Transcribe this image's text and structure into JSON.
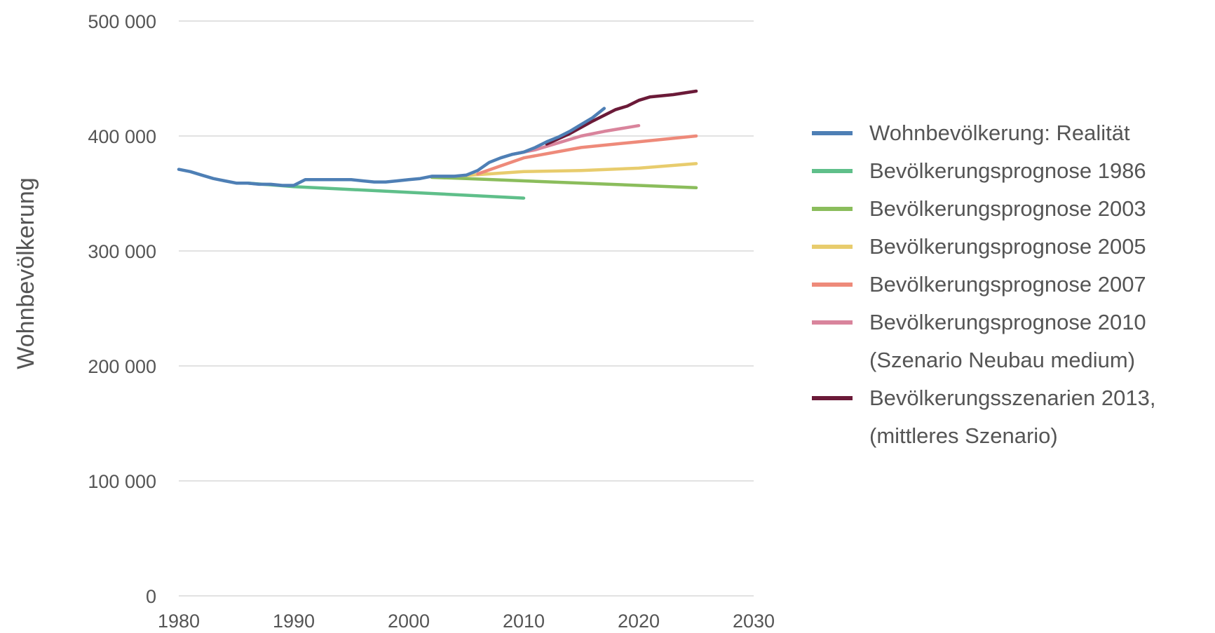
{
  "chart_data": {
    "type": "line",
    "title": "",
    "xlabel": "",
    "ylabel": "Wohnbevölkerung",
    "xlim": [
      1980,
      2030
    ],
    "ylim": [
      0,
      500000
    ],
    "x_ticks": [
      1980,
      1990,
      2000,
      2010,
      2020,
      2030
    ],
    "x_tick_labels": [
      "1980",
      "1990",
      "2000",
      "2010",
      "2020",
      "2030"
    ],
    "y_ticks": [
      0,
      100000,
      200000,
      300000,
      400000,
      500000
    ],
    "y_tick_labels": [
      "0",
      "100 000",
      "200 000",
      "300 000",
      "400 000",
      "500 000"
    ],
    "grid": true,
    "legend_position": "right",
    "series": [
      {
        "key": "reality",
        "color": "#4e7fb5",
        "legend": [
          "Wohnbevölkerung: Realität"
        ],
        "points": [
          [
            1980,
            371000
          ],
          [
            1981,
            369000
          ],
          [
            1982,
            366000
          ],
          [
            1983,
            363000
          ],
          [
            1984,
            361000
          ],
          [
            1985,
            359000
          ],
          [
            1986,
            359000
          ],
          [
            1987,
            358000
          ],
          [
            1988,
            358000
          ],
          [
            1989,
            357000
          ],
          [
            1990,
            357000
          ],
          [
            1991,
            362000
          ],
          [
            1992,
            362000
          ],
          [
            1993,
            362000
          ],
          [
            1994,
            362000
          ],
          [
            1995,
            362000
          ],
          [
            1996,
            361000
          ],
          [
            1997,
            360000
          ],
          [
            1998,
            360000
          ],
          [
            1999,
            361000
          ],
          [
            2000,
            362000
          ],
          [
            2001,
            363000
          ],
          [
            2002,
            365000
          ],
          [
            2003,
            365000
          ],
          [
            2004,
            365000
          ],
          [
            2005,
            366000
          ],
          [
            2006,
            370000
          ],
          [
            2007,
            377000
          ],
          [
            2008,
            381000
          ],
          [
            2009,
            384000
          ],
          [
            2010,
            386000
          ],
          [
            2011,
            390000
          ],
          [
            2012,
            395000
          ],
          [
            2013,
            399000
          ],
          [
            2014,
            404000
          ],
          [
            2015,
            410000
          ],
          [
            2016,
            416000
          ],
          [
            2017,
            424000
          ]
        ]
      },
      {
        "key": "p1986",
        "color": "#5fbf8a",
        "legend": [
          "Bevölkerungsprognose 1986"
        ],
        "points": [
          [
            1986,
            359000
          ],
          [
            1990,
            356000
          ],
          [
            2000,
            351000
          ],
          [
            2010,
            346000
          ]
        ]
      },
      {
        "key": "p2003",
        "color": "#8bbd5c",
        "legend": [
          "Bevölkerungsprognose 2003"
        ],
        "points": [
          [
            2002,
            364000
          ],
          [
            2005,
            363000
          ],
          [
            2010,
            361000
          ],
          [
            2015,
            359000
          ],
          [
            2020,
            357000
          ],
          [
            2025,
            355000
          ]
        ]
      },
      {
        "key": "p2005",
        "color": "#e8cc6d",
        "legend": [
          "Bevölkerungsprognose 2005"
        ],
        "points": [
          [
            2004,
            365000
          ],
          [
            2010,
            369000
          ],
          [
            2015,
            370000
          ],
          [
            2020,
            372000
          ],
          [
            2025,
            376000
          ]
        ]
      },
      {
        "key": "p2007",
        "color": "#ee8a7a",
        "legend": [
          "Bevölkerungsprognose 2007"
        ],
        "points": [
          [
            2006,
            367000
          ],
          [
            2008,
            374000
          ],
          [
            2010,
            381000
          ],
          [
            2015,
            390000
          ],
          [
            2020,
            395000
          ],
          [
            2025,
            400000
          ]
        ]
      },
      {
        "key": "p2010",
        "color": "#d9849c",
        "legend": [
          "Bevölkerungsprognose 2010",
          "(Szenario Neubau medium)"
        ],
        "points": [
          [
            2009,
            384000
          ],
          [
            2011,
            388000
          ],
          [
            2013,
            394000
          ],
          [
            2015,
            400000
          ],
          [
            2017,
            404000
          ],
          [
            2020,
            409000
          ]
        ]
      },
      {
        "key": "s2013",
        "color": "#6b1a38",
        "legend": [
          "Bevölkerungsszenarien 2013,",
          "(mittleres Szenario)"
        ],
        "points": [
          [
            2012,
            393000
          ],
          [
            2014,
            402000
          ],
          [
            2016,
            413000
          ],
          [
            2018,
            423000
          ],
          [
            2019,
            426000
          ],
          [
            2020,
            431000
          ],
          [
            2021,
            434000
          ],
          [
            2023,
            436000
          ],
          [
            2025,
            439000
          ]
        ]
      }
    ]
  }
}
